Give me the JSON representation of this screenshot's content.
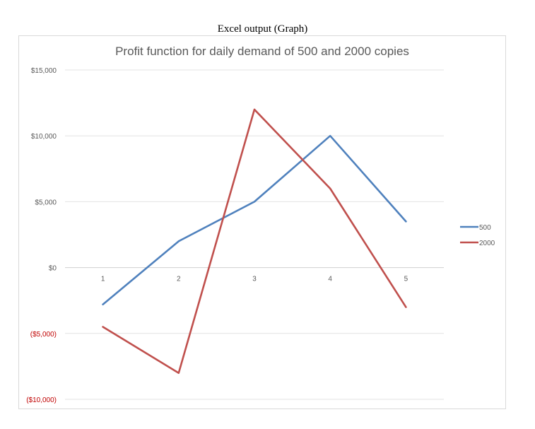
{
  "page": {
    "title": "Excel output (Graph)"
  },
  "chart_data": {
    "type": "line",
    "title": "Profit function for daily demand of 500 and 2000 copies",
    "xlabel": "",
    "ylabel": "",
    "categories": [
      "1",
      "2",
      "3",
      "4",
      "5"
    ],
    "ylim": [
      -10000,
      15000
    ],
    "yticks": [
      15000,
      10000,
      5000,
      0,
      -5000,
      -10000
    ],
    "ytick_labels": [
      "$15,000",
      "$10,000",
      "$5,000",
      "$0",
      "($5,000)",
      "($10,000)"
    ],
    "negative_tick_color": "#c00000",
    "grid": true,
    "legend_position": "right",
    "series": [
      {
        "name": "500",
        "color": "#4f81bd",
        "values": [
          -2800,
          2000,
          5000,
          10000,
          3500
        ]
      },
      {
        "name": "2000",
        "color": "#c0504d",
        "values": [
          -4500,
          -8000,
          12000,
          6000,
          -3000
        ]
      }
    ]
  }
}
